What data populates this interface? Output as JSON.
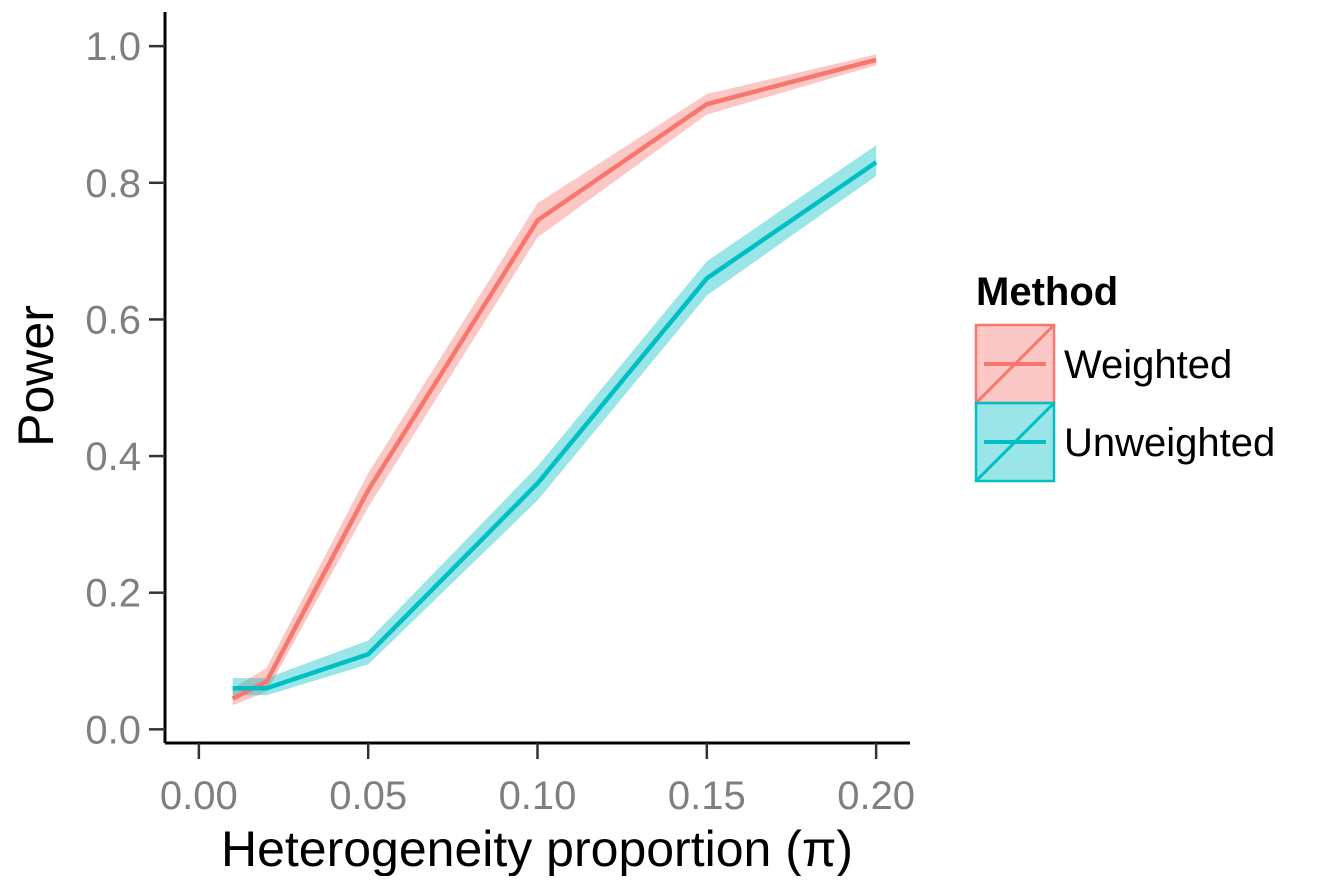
{
  "chart_data": {
    "type": "line",
    "xlabel": "Heterogeneity proportion (π)",
    "ylabel": "Power",
    "xlim": [
      -0.01,
      0.21
    ],
    "ylim": [
      -0.02,
      1.05
    ],
    "x_ticks": [
      0.0,
      0.05,
      0.1,
      0.15,
      0.2
    ],
    "x_tick_labels": [
      "0.00",
      "0.05",
      "0.10",
      "0.15",
      "0.20"
    ],
    "y_ticks": [
      0.0,
      0.2,
      0.4,
      0.6,
      0.8,
      1.0
    ],
    "y_tick_labels": [
      "0.0",
      "0.2",
      "0.4",
      "0.6",
      "0.8",
      "1.0"
    ],
    "grid": false,
    "legend": {
      "title": "Method",
      "position": "right"
    },
    "series": [
      {
        "name": "Weighted",
        "color": "#F8766D",
        "x": [
          0.01,
          0.02,
          0.05,
          0.1,
          0.15,
          0.2
        ],
        "y": [
          0.045,
          0.07,
          0.35,
          0.745,
          0.915,
          0.98
        ],
        "lower": [
          0.035,
          0.055,
          0.325,
          0.72,
          0.9,
          0.972
        ],
        "upper": [
          0.06,
          0.09,
          0.375,
          0.77,
          0.93,
          0.988
        ]
      },
      {
        "name": "Unweighted",
        "color": "#00BFC4",
        "x": [
          0.01,
          0.02,
          0.05,
          0.1,
          0.15,
          0.2
        ],
        "y": [
          0.06,
          0.06,
          0.11,
          0.36,
          0.66,
          0.83
        ],
        "lower": [
          0.05,
          0.05,
          0.095,
          0.335,
          0.635,
          0.81
        ],
        "upper": [
          0.075,
          0.075,
          0.13,
          0.385,
          0.685,
          0.855
        ]
      }
    ]
  }
}
